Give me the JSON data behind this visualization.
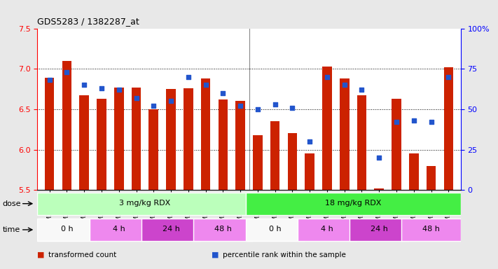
{
  "title": "GDS5283 / 1382287_at",
  "samples": [
    "GSM306952",
    "GSM306954",
    "GSM306956",
    "GSM306958",
    "GSM306960",
    "GSM306962",
    "GSM306964",
    "GSM306966",
    "GSM306968",
    "GSM306970",
    "GSM306972",
    "GSM306974",
    "GSM306976",
    "GSM306978",
    "GSM306980",
    "GSM306982",
    "GSM306984",
    "GSM306986",
    "GSM306988",
    "GSM306990",
    "GSM306992",
    "GSM306994",
    "GSM306996",
    "GSM306998"
  ],
  "bar_values": [
    6.89,
    7.1,
    6.67,
    6.63,
    6.77,
    6.77,
    6.5,
    6.75,
    6.76,
    6.88,
    6.62,
    6.6,
    6.18,
    6.35,
    6.2,
    5.95,
    7.03,
    6.88,
    6.67,
    5.52,
    6.63,
    5.95,
    5.8,
    7.02
  ],
  "percentile_values": [
    68,
    73,
    65,
    63,
    62,
    57,
    52,
    55,
    70,
    65,
    60,
    52,
    50,
    53,
    51,
    30,
    70,
    65,
    62,
    20,
    42,
    43,
    42,
    70
  ],
  "ylim_left": [
    5.5,
    7.5
  ],
  "ylim_right": [
    0,
    100
  ],
  "yticks_left": [
    5.5,
    6.0,
    6.5,
    7.0,
    7.5
  ],
  "yticks_right": [
    0,
    25,
    50,
    75,
    100
  ],
  "bar_color": "#cc2200",
  "dot_color": "#2255cc",
  "background_color": "#e8e8e8",
  "plot_bg_color": "#ffffff",
  "dose_groups": [
    {
      "label": "3 mg/kg RDX",
      "start": 0,
      "end": 12,
      "color": "#bbffbb"
    },
    {
      "label": "18 mg/kg RDX",
      "start": 12,
      "end": 24,
      "color": "#44ee44"
    }
  ],
  "time_groups": [
    {
      "label": "0 h",
      "start": 0,
      "end": 3,
      "color": "#f8f8f8"
    },
    {
      "label": "4 h",
      "start": 3,
      "end": 6,
      "color": "#ee88ee"
    },
    {
      "label": "24 h",
      "start": 6,
      "end": 9,
      "color": "#cc44cc"
    },
    {
      "label": "48 h",
      "start": 9,
      "end": 12,
      "color": "#ee88ee"
    },
    {
      "label": "0 h",
      "start": 12,
      "end": 15,
      "color": "#f8f8f8"
    },
    {
      "label": "4 h",
      "start": 15,
      "end": 18,
      "color": "#ee88ee"
    },
    {
      "label": "24 h",
      "start": 18,
      "end": 21,
      "color": "#cc44cc"
    },
    {
      "label": "48 h",
      "start": 21,
      "end": 24,
      "color": "#ee88ee"
    }
  ],
  "legend_items": [
    {
      "label": "transformed count",
      "color": "#cc2200"
    },
    {
      "label": "percentile rank within the sample",
      "color": "#2255cc"
    }
  ],
  "grid_values": [
    6.0,
    6.5,
    7.0
  ],
  "bar_bottom": 5.5
}
